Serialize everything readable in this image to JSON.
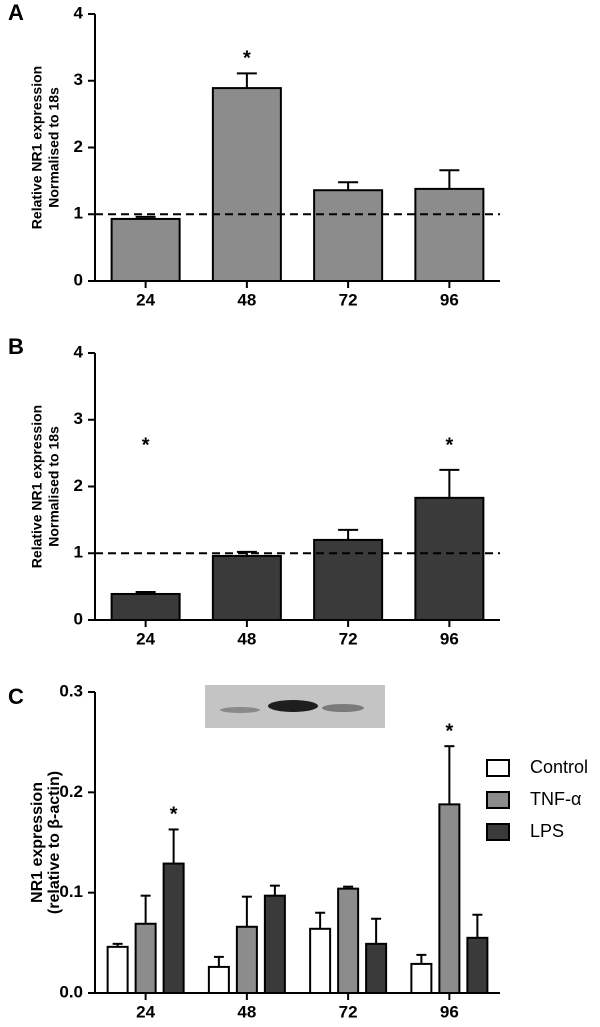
{
  "chart_data": [
    {
      "type": "bar",
      "panel": "A",
      "ylabel": [
        "Relative NR1 expression",
        "Normalised to 18s"
      ],
      "categories": [
        "24",
        "48",
        "72",
        "96"
      ],
      "values": [
        0.93,
        2.89,
        1.36,
        1.38
      ],
      "errors": [
        0.03,
        0.22,
        0.12,
        0.28
      ],
      "color": "#8c8c8c",
      "ylim": [
        0,
        4
      ],
      "yticks": [
        0,
        1,
        2,
        3,
        4
      ],
      "reference_line": 1,
      "annotations": [
        {
          "text": "*",
          "category": "48"
        }
      ]
    },
    {
      "type": "bar",
      "panel": "B",
      "ylabel": [
        "Relative NR1 expression",
        "Normalised to 18s"
      ],
      "categories": [
        "24",
        "48",
        "72",
        "96"
      ],
      "values": [
        0.39,
        0.96,
        1.2,
        1.83
      ],
      "errors": [
        0.03,
        0.06,
        0.15,
        0.42
      ],
      "color": "#3a3a3a",
      "ylim": [
        0,
        4
      ],
      "yticks": [
        0,
        1,
        2,
        3,
        4
      ],
      "reference_line": 1,
      "annotations": [
        {
          "text": "*",
          "category": "24"
        },
        {
          "text": "*",
          "category": "96"
        }
      ]
    },
    {
      "type": "grouped-bar",
      "panel": "C",
      "ylabel": [
        "NR1 expression",
        "(relative to β-actin)"
      ],
      "categories": [
        "24",
        "48",
        "72",
        "96"
      ],
      "series": [
        {
          "name": "Control",
          "color": "#ffffff",
          "values": [
            0.046,
            0.026,
            0.064,
            0.029
          ],
          "errors": [
            0.003,
            0.01,
            0.016,
            0.009
          ]
        },
        {
          "name": "TNF-α",
          "color": "#8c8c8c",
          "values": [
            0.069,
            0.066,
            0.104,
            0.188
          ],
          "errors": [
            0.028,
            0.03,
            0.002,
            0.058
          ]
        },
        {
          "name": "LPS",
          "color": "#3a3a3a",
          "values": [
            0.129,
            0.097,
            0.049,
            0.055
          ],
          "errors": [
            0.034,
            0.01,
            0.025,
            0.023
          ]
        }
      ],
      "ylim": [
        0,
        0.3
      ],
      "yticks": [
        {
          "value": 0,
          "label": "0.0"
        },
        0.1,
        0.2,
        0.3
      ],
      "annotations": [
        {
          "text": "*",
          "category": "24",
          "series": "LPS"
        },
        {
          "text": "*",
          "category": "96",
          "series": "TNF-α"
        }
      ]
    }
  ]
}
